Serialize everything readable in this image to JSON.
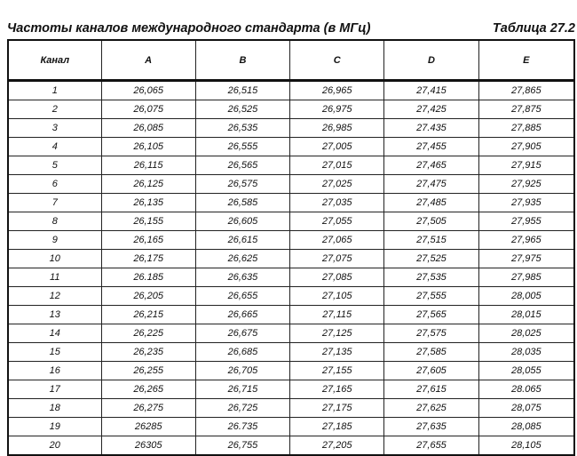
{
  "title": "Частоты каналов международного стандарта (в МГц)",
  "table_number": "Таблица 27.2",
  "headers": [
    "Канал",
    "A",
    "B",
    "C",
    "D",
    "E"
  ],
  "rows": [
    [
      "1",
      "26,065",
      "26,515",
      "26,965",
      "27,415",
      "27,865"
    ],
    [
      "2",
      "26,075",
      "26,525",
      "26,975",
      "27,425",
      "27,875"
    ],
    [
      "3",
      "26,085",
      "26,535",
      "26,985",
      "27.435",
      "27,885"
    ],
    [
      "4",
      "26,105",
      "26,555",
      "27,005",
      "27,455",
      "27,905"
    ],
    [
      "5",
      "26,115",
      "26,565",
      "27,015",
      "27,465",
      "27,915"
    ],
    [
      "6",
      "26,125",
      "26,575",
      "27,025",
      "27,475",
      "27,925"
    ],
    [
      "7",
      "26,135",
      "26,585",
      "27,035",
      "27,485",
      "27,935"
    ],
    [
      "8",
      "26,155",
      "26,605",
      "27,055",
      "27,505",
      "27,955"
    ],
    [
      "9",
      "26,165",
      "26,615",
      "27,065",
      "27,515",
      "27,965"
    ],
    [
      "10",
      "26,175",
      "26,625",
      "27,075",
      "27,525",
      "27,975"
    ],
    [
      "11",
      "26.185",
      "26,635",
      "27,085",
      "27,535",
      "27,985"
    ],
    [
      "12",
      "26,205",
      "26,655",
      "27,105",
      "27,555",
      "28,005"
    ],
    [
      "13",
      "26,215",
      "26,665",
      "27,115",
      "27,565",
      "28,015"
    ],
    [
      "14",
      "26,225",
      "26,675",
      "27,125",
      "27,575",
      "28,025"
    ],
    [
      "15",
      "26,235",
      "26,685",
      "27,135",
      "27,585",
      "28,035"
    ],
    [
      "16",
      "26,255",
      "26,705",
      "27,155",
      "27,605",
      "28,055"
    ],
    [
      "17",
      "26,265",
      "26,715",
      "27,165",
      "27,615",
      "28.065"
    ],
    [
      "18",
      "26,275",
      "26,725",
      "27,175",
      "27,625",
      "28,075"
    ],
    [
      "19",
      "26285",
      "26.735",
      "27,185",
      "27,635",
      "28,085"
    ],
    [
      "20",
      "26305",
      "26,755",
      "27,205",
      "27,655",
      "28,105"
    ]
  ]
}
